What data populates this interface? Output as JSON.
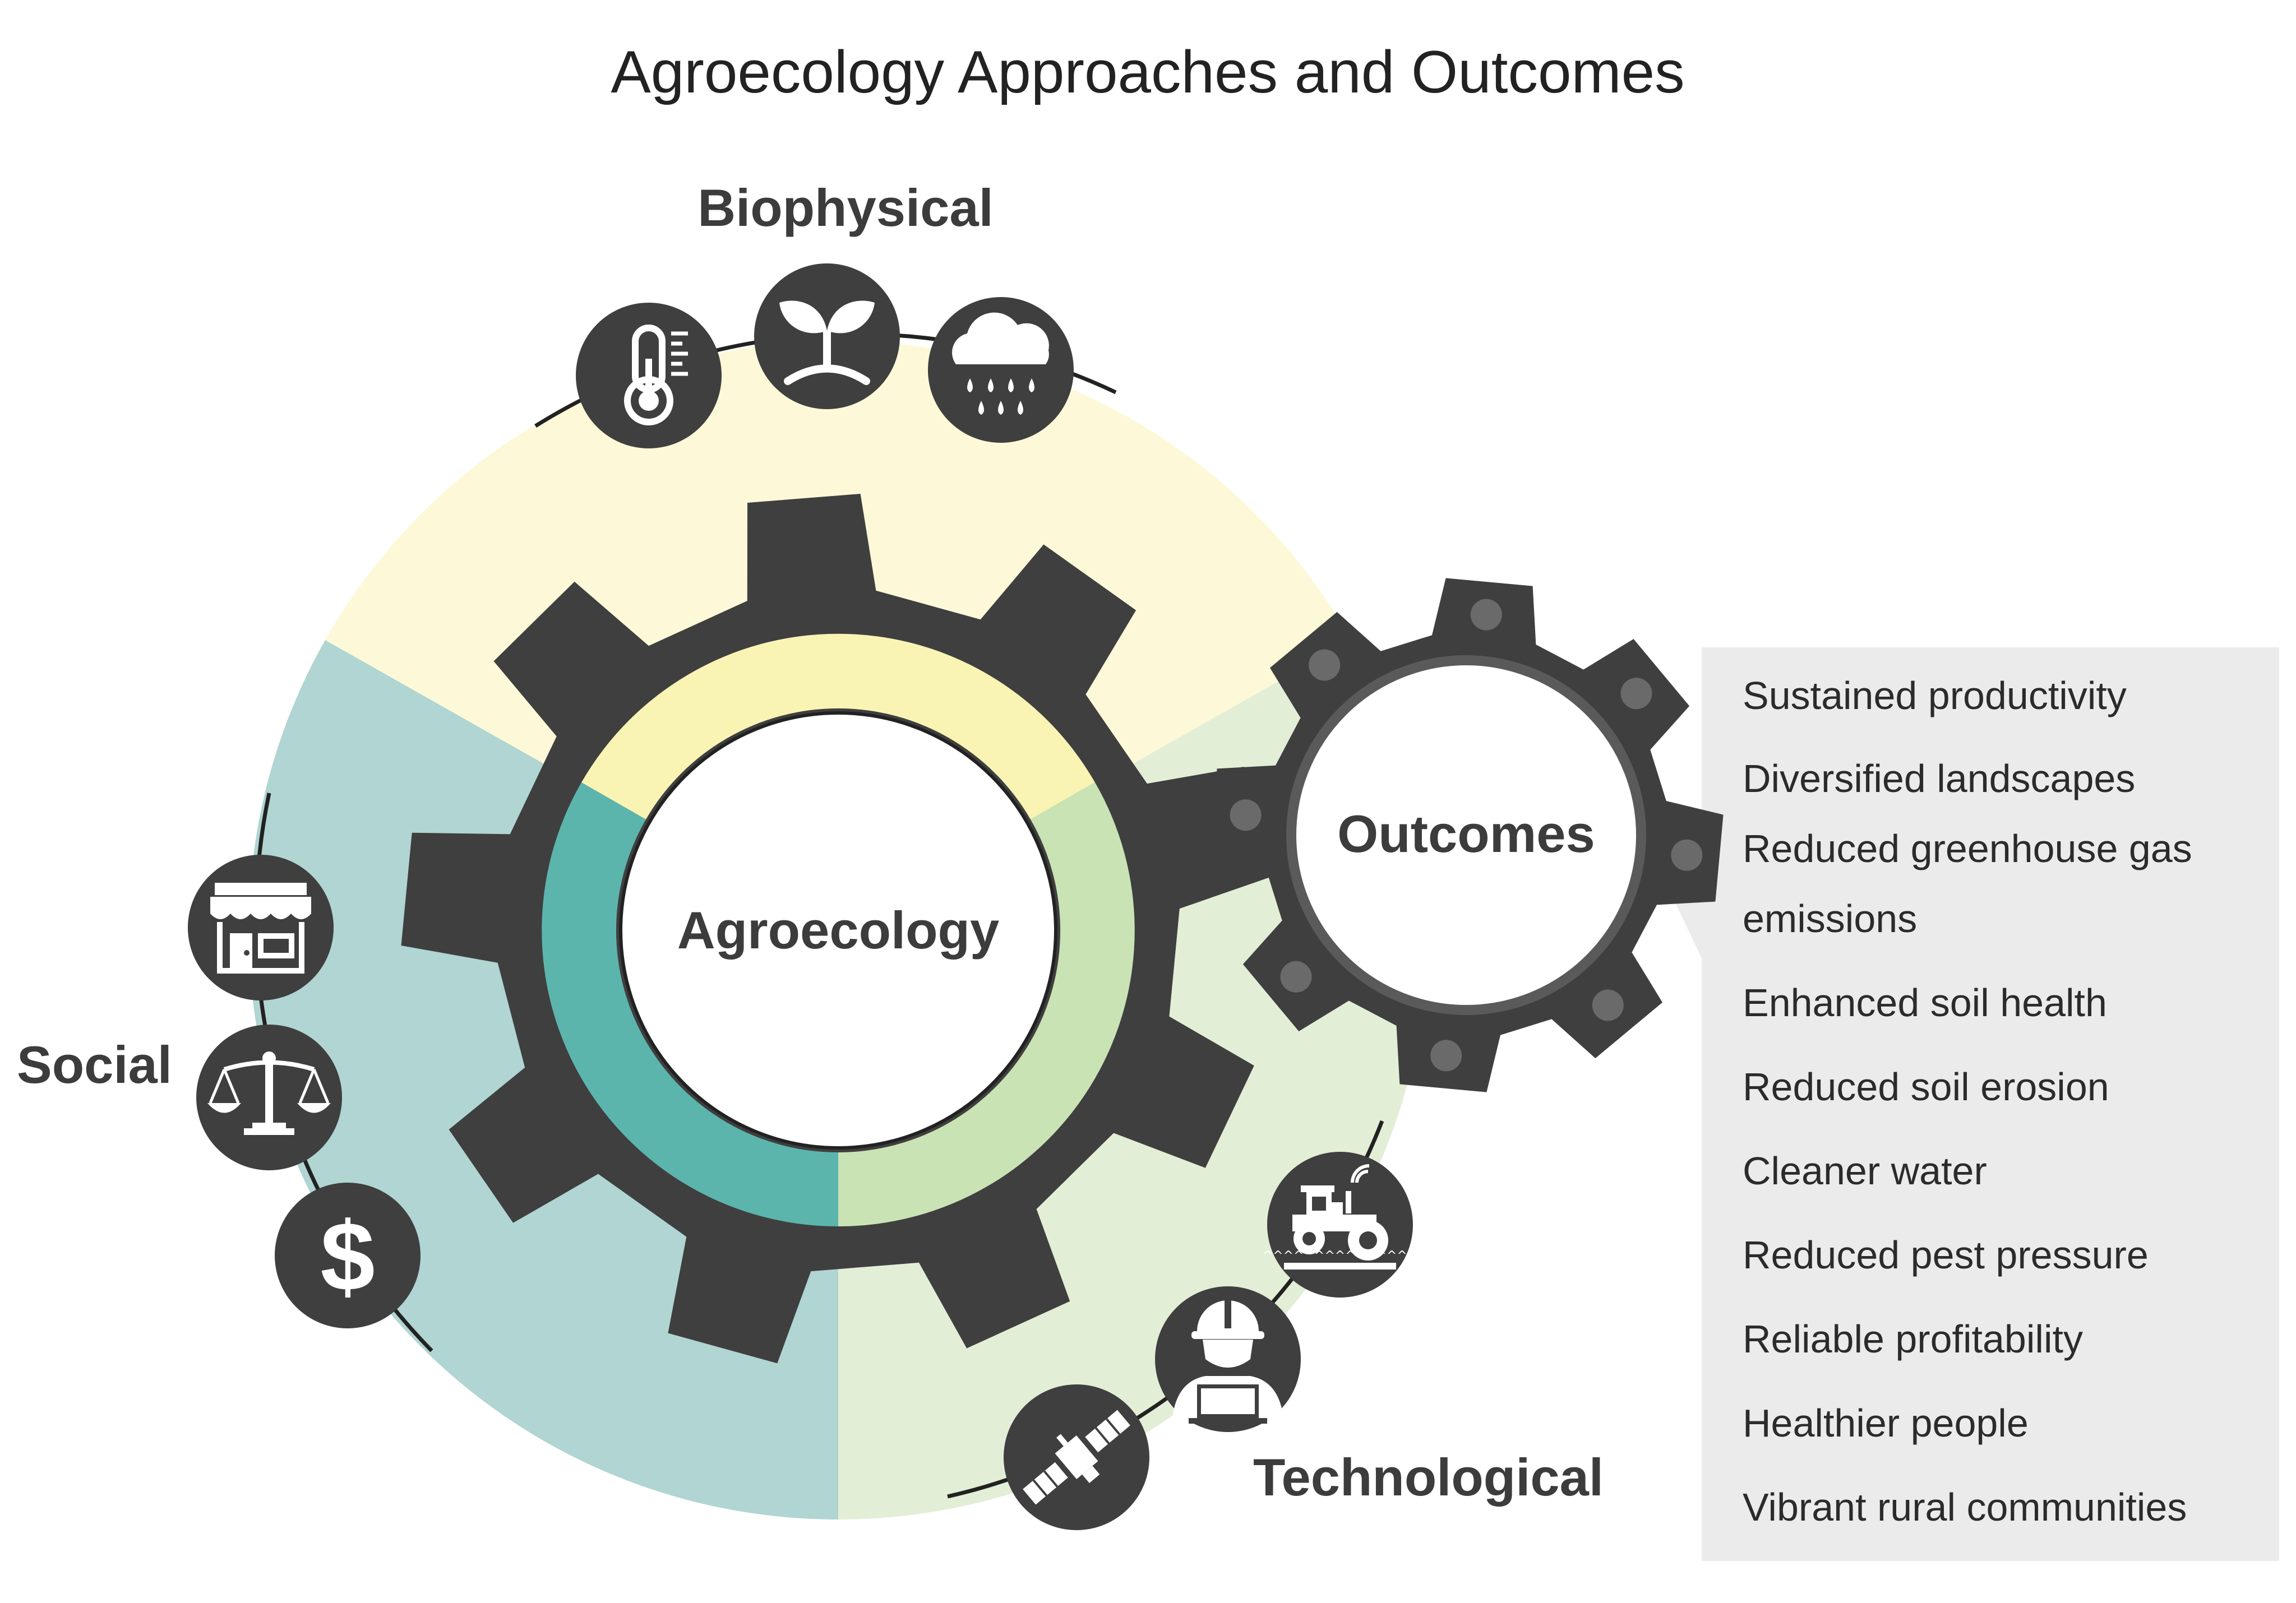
{
  "title": "Agroecology Approaches and Outcomes",
  "center_gear": {
    "label": "Agroecology"
  },
  "outcome_gear": {
    "label": "Outcomes"
  },
  "sections": {
    "biophysical": {
      "label": "Biophysical",
      "color": "#fdf9d8",
      "ring_color": "#f9f4b4",
      "icons": [
        "thermometer-icon",
        "seedling-icon",
        "rain-cloud-icon"
      ]
    },
    "social": {
      "label": "Social",
      "color": "#b0d5d2",
      "ring_color": "#5cb5ad",
      "icons": [
        "market-stall-icon",
        "balance-scale-icon",
        "dollar-icon"
      ]
    },
    "technological": {
      "label": "Technological",
      "color": "#e3eed6",
      "ring_color": "#c9e3b5",
      "icons": [
        "smart-tractor-icon",
        "worker-with-laptop-icon",
        "satellite-icon"
      ]
    }
  },
  "icon_text": {
    "dollar": "$"
  },
  "outcomes": [
    [
      "Sustained productivity"
    ],
    [
      "Diversified landscapes"
    ],
    [
      "Reduced greenhouse gas",
      "emissions"
    ],
    [
      "Enhanced soil health"
    ],
    [
      "Reduced soil erosion"
    ],
    [
      "Cleaner water"
    ],
    [
      "Reduced pest pressure"
    ],
    [
      "Reliable profitability"
    ],
    [
      "Healthier people"
    ],
    [
      "Vibrant rural communities"
    ]
  ],
  "colors": {
    "gear": "#3f3f3f",
    "outcomes_panel": "#ebebeb",
    "icon_bg": "#3f3f3f"
  }
}
